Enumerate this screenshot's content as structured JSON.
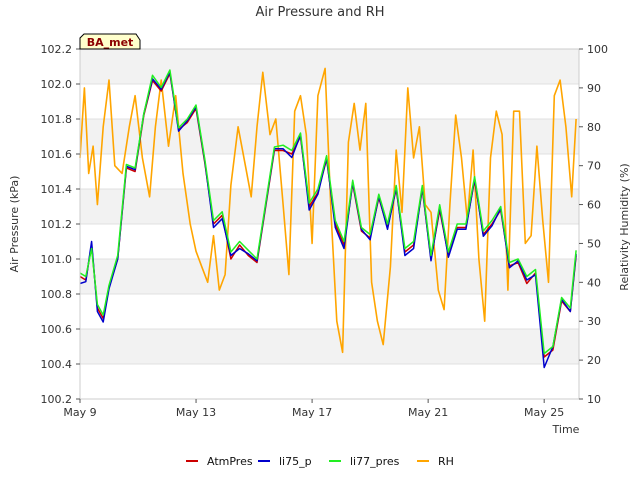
{
  "chart_data": {
    "type": "line",
    "title": "Air Pressure and RH",
    "badge": "BA_met",
    "xlabel": "Time",
    "ylabel": "Air Pressure (kPa)",
    "y2label": "Relativity Humidity (%)",
    "xlim": [
      0,
      17.2
    ],
    "ylim": [
      100.2,
      102.2
    ],
    "y2lim": [
      10,
      100
    ],
    "x_ticks": [
      {
        "value": 0,
        "label": "May 9"
      },
      {
        "value": 4,
        "label": "May 13"
      },
      {
        "value": 8,
        "label": "May 17"
      },
      {
        "value": 12,
        "label": "May 21"
      },
      {
        "value": 16,
        "label": "May 25"
      }
    ],
    "y_ticks": [
      "100.2",
      "100.4",
      "100.6",
      "100.8",
      "101.0",
      "101.2",
      "101.4",
      "101.6",
      "101.8",
      "102.0",
      "102.2"
    ],
    "y2_ticks": [
      "10",
      "20",
      "30",
      "40",
      "50",
      "60",
      "70",
      "80",
      "90",
      "100"
    ],
    "grid": true,
    "legend_position": "bottom",
    "series": [
      {
        "name": "AtmPres",
        "axis": "left",
        "color": "#cc0000",
        "x": [
          0.0,
          0.2,
          0.4,
          0.6,
          0.8,
          1.0,
          1.3,
          1.6,
          1.9,
          2.2,
          2.5,
          2.8,
          3.1,
          3.4,
          3.7,
          4.0,
          4.3,
          4.6,
          4.9,
          5.2,
          5.5,
          5.8,
          6.1,
          6.4,
          6.7,
          7.0,
          7.3,
          7.6,
          7.9,
          8.2,
          8.5,
          8.8,
          9.1,
          9.4,
          9.7,
          10.0,
          10.3,
          10.6,
          10.9,
          11.2,
          11.5,
          11.8,
          12.1,
          12.4,
          12.7,
          13.0,
          13.3,
          13.6,
          13.9,
          14.2,
          14.5,
          14.8,
          15.1,
          15.4,
          15.7,
          16.0,
          16.3,
          16.6,
          16.9,
          17.1
        ],
        "y": [
          100.9,
          100.88,
          101.08,
          100.72,
          100.66,
          100.84,
          101.0,
          101.52,
          101.5,
          101.82,
          102.02,
          101.96,
          102.06,
          101.74,
          101.78,
          101.86,
          101.55,
          101.2,
          101.25,
          101.0,
          101.08,
          101.02,
          100.98,
          101.3,
          101.62,
          101.62,
          101.6,
          101.7,
          101.3,
          101.38,
          101.57,
          101.2,
          101.08,
          101.43,
          101.16,
          101.12,
          101.35,
          101.18,
          101.4,
          101.04,
          101.08,
          101.4,
          101.0,
          101.28,
          101.02,
          101.18,
          101.18,
          101.45,
          101.14,
          101.2,
          101.28,
          100.96,
          100.98,
          100.86,
          100.92,
          100.44,
          100.48,
          100.76,
          100.7,
          101.02
        ]
      },
      {
        "name": "li75_p",
        "axis": "left",
        "color": "#0000cc",
        "x": [
          0.0,
          0.2,
          0.4,
          0.6,
          0.8,
          1.0,
          1.3,
          1.6,
          1.9,
          2.2,
          2.5,
          2.8,
          3.1,
          3.4,
          3.7,
          4.0,
          4.3,
          4.6,
          4.9,
          5.2,
          5.5,
          5.8,
          6.1,
          6.4,
          6.7,
          7.0,
          7.3,
          7.6,
          7.9,
          8.2,
          8.5,
          8.8,
          9.1,
          9.4,
          9.7,
          10.0,
          10.3,
          10.6,
          10.9,
          11.2,
          11.5,
          11.8,
          12.1,
          12.4,
          12.7,
          13.0,
          13.3,
          13.6,
          13.9,
          14.2,
          14.5,
          14.8,
          15.1,
          15.4,
          15.7,
          16.0,
          16.3,
          16.6,
          16.9,
          17.1
        ],
        "y": [
          100.86,
          100.87,
          101.1,
          100.7,
          100.64,
          100.83,
          101.0,
          101.53,
          101.51,
          101.83,
          102.03,
          101.97,
          102.07,
          101.73,
          101.79,
          101.87,
          101.56,
          101.18,
          101.23,
          101.02,
          101.06,
          101.03,
          100.99,
          101.31,
          101.63,
          101.63,
          101.58,
          101.71,
          101.28,
          101.37,
          101.58,
          101.18,
          101.06,
          101.44,
          101.17,
          101.11,
          101.36,
          101.17,
          101.41,
          101.02,
          101.06,
          101.41,
          100.99,
          101.3,
          101.01,
          101.17,
          101.17,
          101.46,
          101.13,
          101.19,
          101.29,
          100.95,
          100.99,
          100.88,
          100.91,
          100.38,
          100.5,
          100.77,
          100.7,
          101.03
        ]
      },
      {
        "name": "li77_pres",
        "axis": "left",
        "color": "#22ee22",
        "x": [
          0.0,
          0.2,
          0.4,
          0.6,
          0.8,
          1.0,
          1.3,
          1.6,
          1.9,
          2.2,
          2.5,
          2.8,
          3.1,
          3.4,
          3.7,
          4.0,
          4.3,
          4.6,
          4.9,
          5.2,
          5.5,
          5.8,
          6.1,
          6.4,
          6.7,
          7.0,
          7.3,
          7.6,
          7.9,
          8.2,
          8.5,
          8.8,
          9.1,
          9.4,
          9.7,
          10.0,
          10.3,
          10.6,
          10.9,
          11.2,
          11.5,
          11.8,
          12.1,
          12.4,
          12.7,
          13.0,
          13.3,
          13.6,
          13.9,
          14.2,
          14.5,
          14.8,
          15.1,
          15.4,
          15.7,
          16.0,
          16.3,
          16.6,
          16.9,
          17.1
        ],
        "y": [
          100.92,
          100.9,
          101.06,
          100.74,
          100.68,
          100.85,
          101.02,
          101.54,
          101.52,
          101.83,
          102.05,
          101.98,
          102.08,
          101.75,
          101.8,
          101.88,
          101.57,
          101.22,
          101.27,
          101.04,
          101.1,
          101.05,
          101.0,
          101.32,
          101.64,
          101.65,
          101.62,
          101.72,
          101.32,
          101.4,
          101.59,
          101.22,
          101.1,
          101.45,
          101.18,
          101.14,
          101.37,
          101.2,
          101.42,
          101.06,
          101.1,
          101.42,
          101.02,
          101.31,
          101.04,
          101.2,
          101.2,
          101.47,
          101.16,
          101.22,
          101.3,
          100.98,
          101.0,
          100.9,
          100.94,
          100.46,
          100.5,
          100.78,
          100.72,
          101.05
        ]
      },
      {
        "name": "RH",
        "axis": "right",
        "color": "#ffa500",
        "x": [
          0.0,
          0.15,
          0.3,
          0.45,
          0.6,
          0.8,
          1.0,
          1.2,
          1.45,
          1.7,
          1.9,
          2.15,
          2.4,
          2.6,
          2.8,
          3.05,
          3.3,
          3.55,
          3.8,
          4.0,
          4.2,
          4.4,
          4.6,
          4.8,
          5.0,
          5.2,
          5.45,
          5.7,
          5.9,
          6.1,
          6.3,
          6.55,
          6.75,
          7.0,
          7.2,
          7.4,
          7.6,
          7.8,
          8.0,
          8.2,
          8.45,
          8.65,
          8.85,
          9.05,
          9.25,
          9.45,
          9.65,
          9.85,
          10.05,
          10.25,
          10.45,
          10.7,
          10.9,
          11.1,
          11.3,
          11.5,
          11.7,
          11.9,
          12.1,
          12.35,
          12.55,
          12.75,
          12.95,
          13.15,
          13.35,
          13.55,
          13.75,
          13.95,
          14.15,
          14.35,
          14.55,
          14.75,
          14.95,
          15.15,
          15.35,
          15.55,
          15.75,
          15.95,
          16.15,
          16.35,
          16.55,
          16.75,
          16.95,
          17.1
        ],
        "y": [
          72,
          90,
          68,
          75,
          60,
          80,
          92,
          70,
          68,
          80,
          88,
          72,
          62,
          80,
          92,
          75,
          88,
          68,
          55,
          48,
          44,
          40,
          52,
          38,
          42,
          65,
          80,
          70,
          62,
          80,
          94,
          78,
          82,
          60,
          42,
          84,
          88,
          78,
          50,
          88,
          95,
          58,
          30,
          22,
          76,
          86,
          74,
          86,
          40,
          30,
          24,
          44,
          74,
          58,
          90,
          72,
          80,
          60,
          58,
          38,
          33,
          60,
          83,
          72,
          56,
          74,
          46,
          30,
          72,
          84,
          78,
          38,
          84,
          84,
          50,
          52,
          75,
          56,
          40,
          88,
          92,
          80,
          62,
          82
        ]
      }
    ]
  },
  "legend": [
    {
      "label": "AtmPres",
      "color": "#cc0000"
    },
    {
      "label": "li75_p",
      "color": "#0000cc"
    },
    {
      "label": "li77_pres",
      "color": "#22ee22"
    },
    {
      "label": "RH",
      "color": "#ffa500"
    }
  ]
}
